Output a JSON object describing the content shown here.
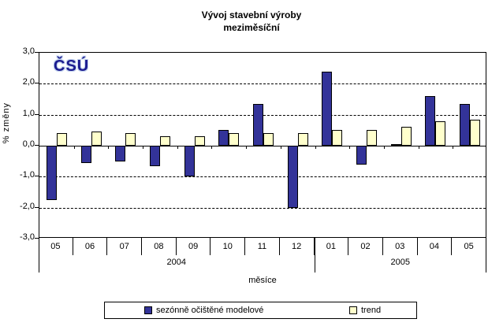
{
  "title": {
    "line1": "Vývoj stavební výroby",
    "line2": "meziměsíční"
  },
  "logo_text": "ČSÚ",
  "chart_data": {
    "type": "bar",
    "title": "Vývoj stavební výroby meziměsíční",
    "xlabel": "měsíce",
    "ylabel": "% změny",
    "ylim": [
      -3.0,
      3.0
    ],
    "ytick_labels": [
      "3,0",
      "2,0",
      "1,0",
      "0,0",
      "-1,0",
      "-2,0",
      "-3,0"
    ],
    "grid": "horizontal-dashed",
    "legend_position": "bottom",
    "categories": [
      "05",
      "06",
      "07",
      "08",
      "09",
      "10",
      "11",
      "12",
      "01",
      "02",
      "03",
      "04",
      "05"
    ],
    "year_groups": [
      {
        "label": "2004",
        "span": 8
      },
      {
        "label": "2005",
        "span": 5
      }
    ],
    "series": [
      {
        "name": "sezónně očištěné modelové",
        "color": "#333399",
        "values": [
          -1.75,
          -0.55,
          -0.5,
          -0.65,
          -1.0,
          0.5,
          1.35,
          -2.0,
          2.4,
          -0.6,
          0.05,
          1.6,
          1.35
        ]
      },
      {
        "name": "trend",
        "color": "#FFFFCC",
        "values": [
          0.4,
          0.45,
          0.4,
          0.3,
          0.3,
          0.4,
          0.4,
          0.4,
          0.5,
          0.5,
          0.6,
          0.8,
          0.85
        ]
      }
    ]
  }
}
